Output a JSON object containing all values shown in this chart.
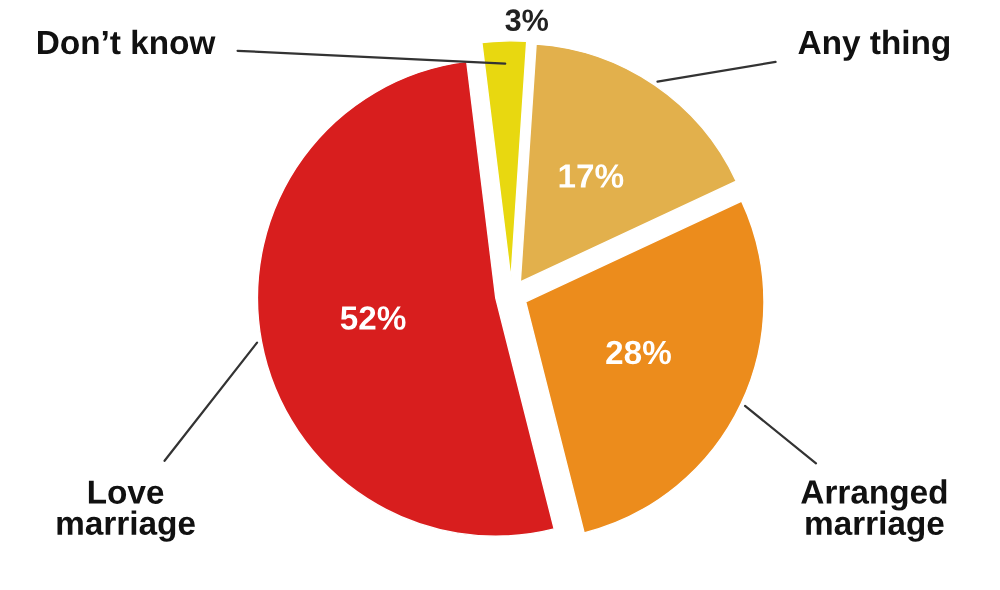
{
  "chart_data": {
    "type": "pie",
    "categories": [
      "Don’t know",
      "Any thing",
      "Arranged\nmarriage",
      "Love\nmarriage"
    ],
    "values": [
      3,
      17,
      28,
      52
    ],
    "colors": [
      "#e8d810",
      "#e2b04c",
      "#ec8c1c",
      "#d81e1e"
    ],
    "value_labels": [
      "3%",
      "17%",
      "28%",
      "52%"
    ],
    "legend": false
  }
}
